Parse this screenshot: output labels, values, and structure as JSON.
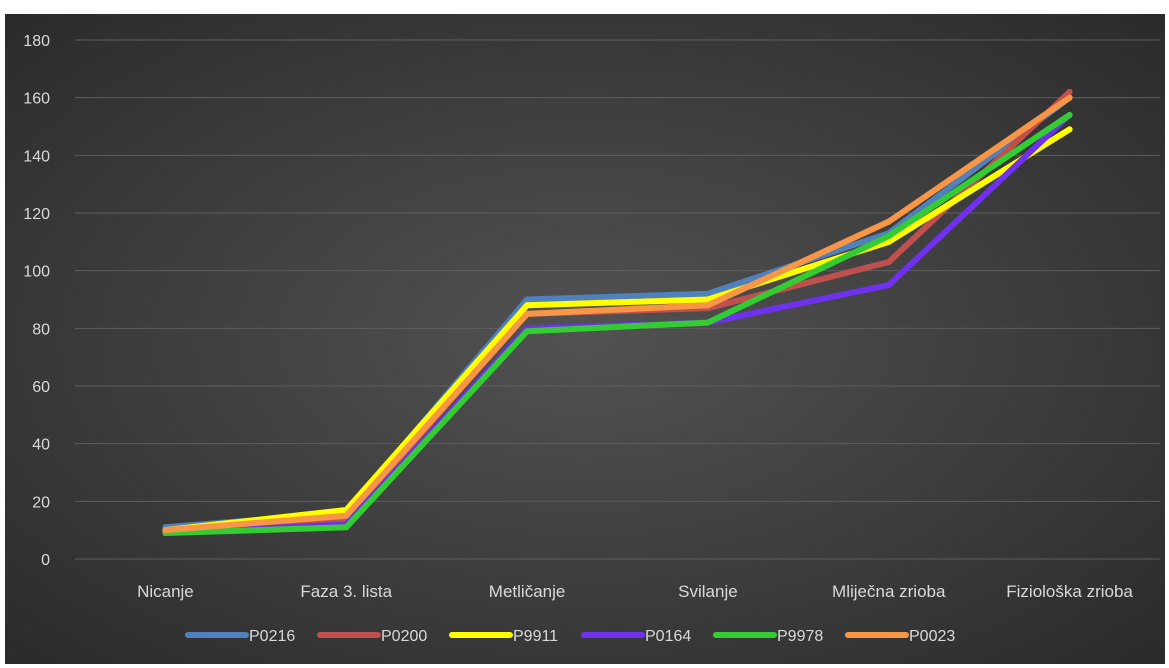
{
  "chart_data": {
    "type": "line",
    "title": "",
    "xlabel": "",
    "ylabel": "",
    "categories": [
      "Nicanje",
      "Faza 3. lista",
      "Metličanje",
      "Svilanje",
      "Mliječna zrioba",
      "Fiziološka zrioba"
    ],
    "ylim": [
      0,
      180
    ],
    "yticks": [
      "0",
      "20",
      "40",
      "60",
      "80",
      "100",
      "120",
      "140",
      "160",
      "180"
    ],
    "grid": true,
    "legend_position": "bottom",
    "series": [
      {
        "name": "P0216",
        "color": "#4f81bd",
        "values": [
          11,
          16,
          90,
          92,
          113,
          160
        ]
      },
      {
        "name": "P0200",
        "color": "#c0504d",
        "values": [
          10,
          14,
          85,
          87,
          103,
          162
        ]
      },
      {
        "name": "P9911",
        "color": "#ffff00",
        "values": [
          10,
          17,
          88,
          90,
          110,
          149
        ]
      },
      {
        "name": "P0164",
        "color": "#7030f0",
        "values": [
          9,
          12,
          80,
          82,
          95,
          154
        ]
      },
      {
        "name": "P9978",
        "color": "#33cc33",
        "values": [
          9,
          11,
          79,
          82,
          112,
          154
        ]
      },
      {
        "name": "P0023",
        "color": "#f79646",
        "values": [
          10,
          15,
          85,
          88,
          117,
          160
        ]
      }
    ]
  }
}
